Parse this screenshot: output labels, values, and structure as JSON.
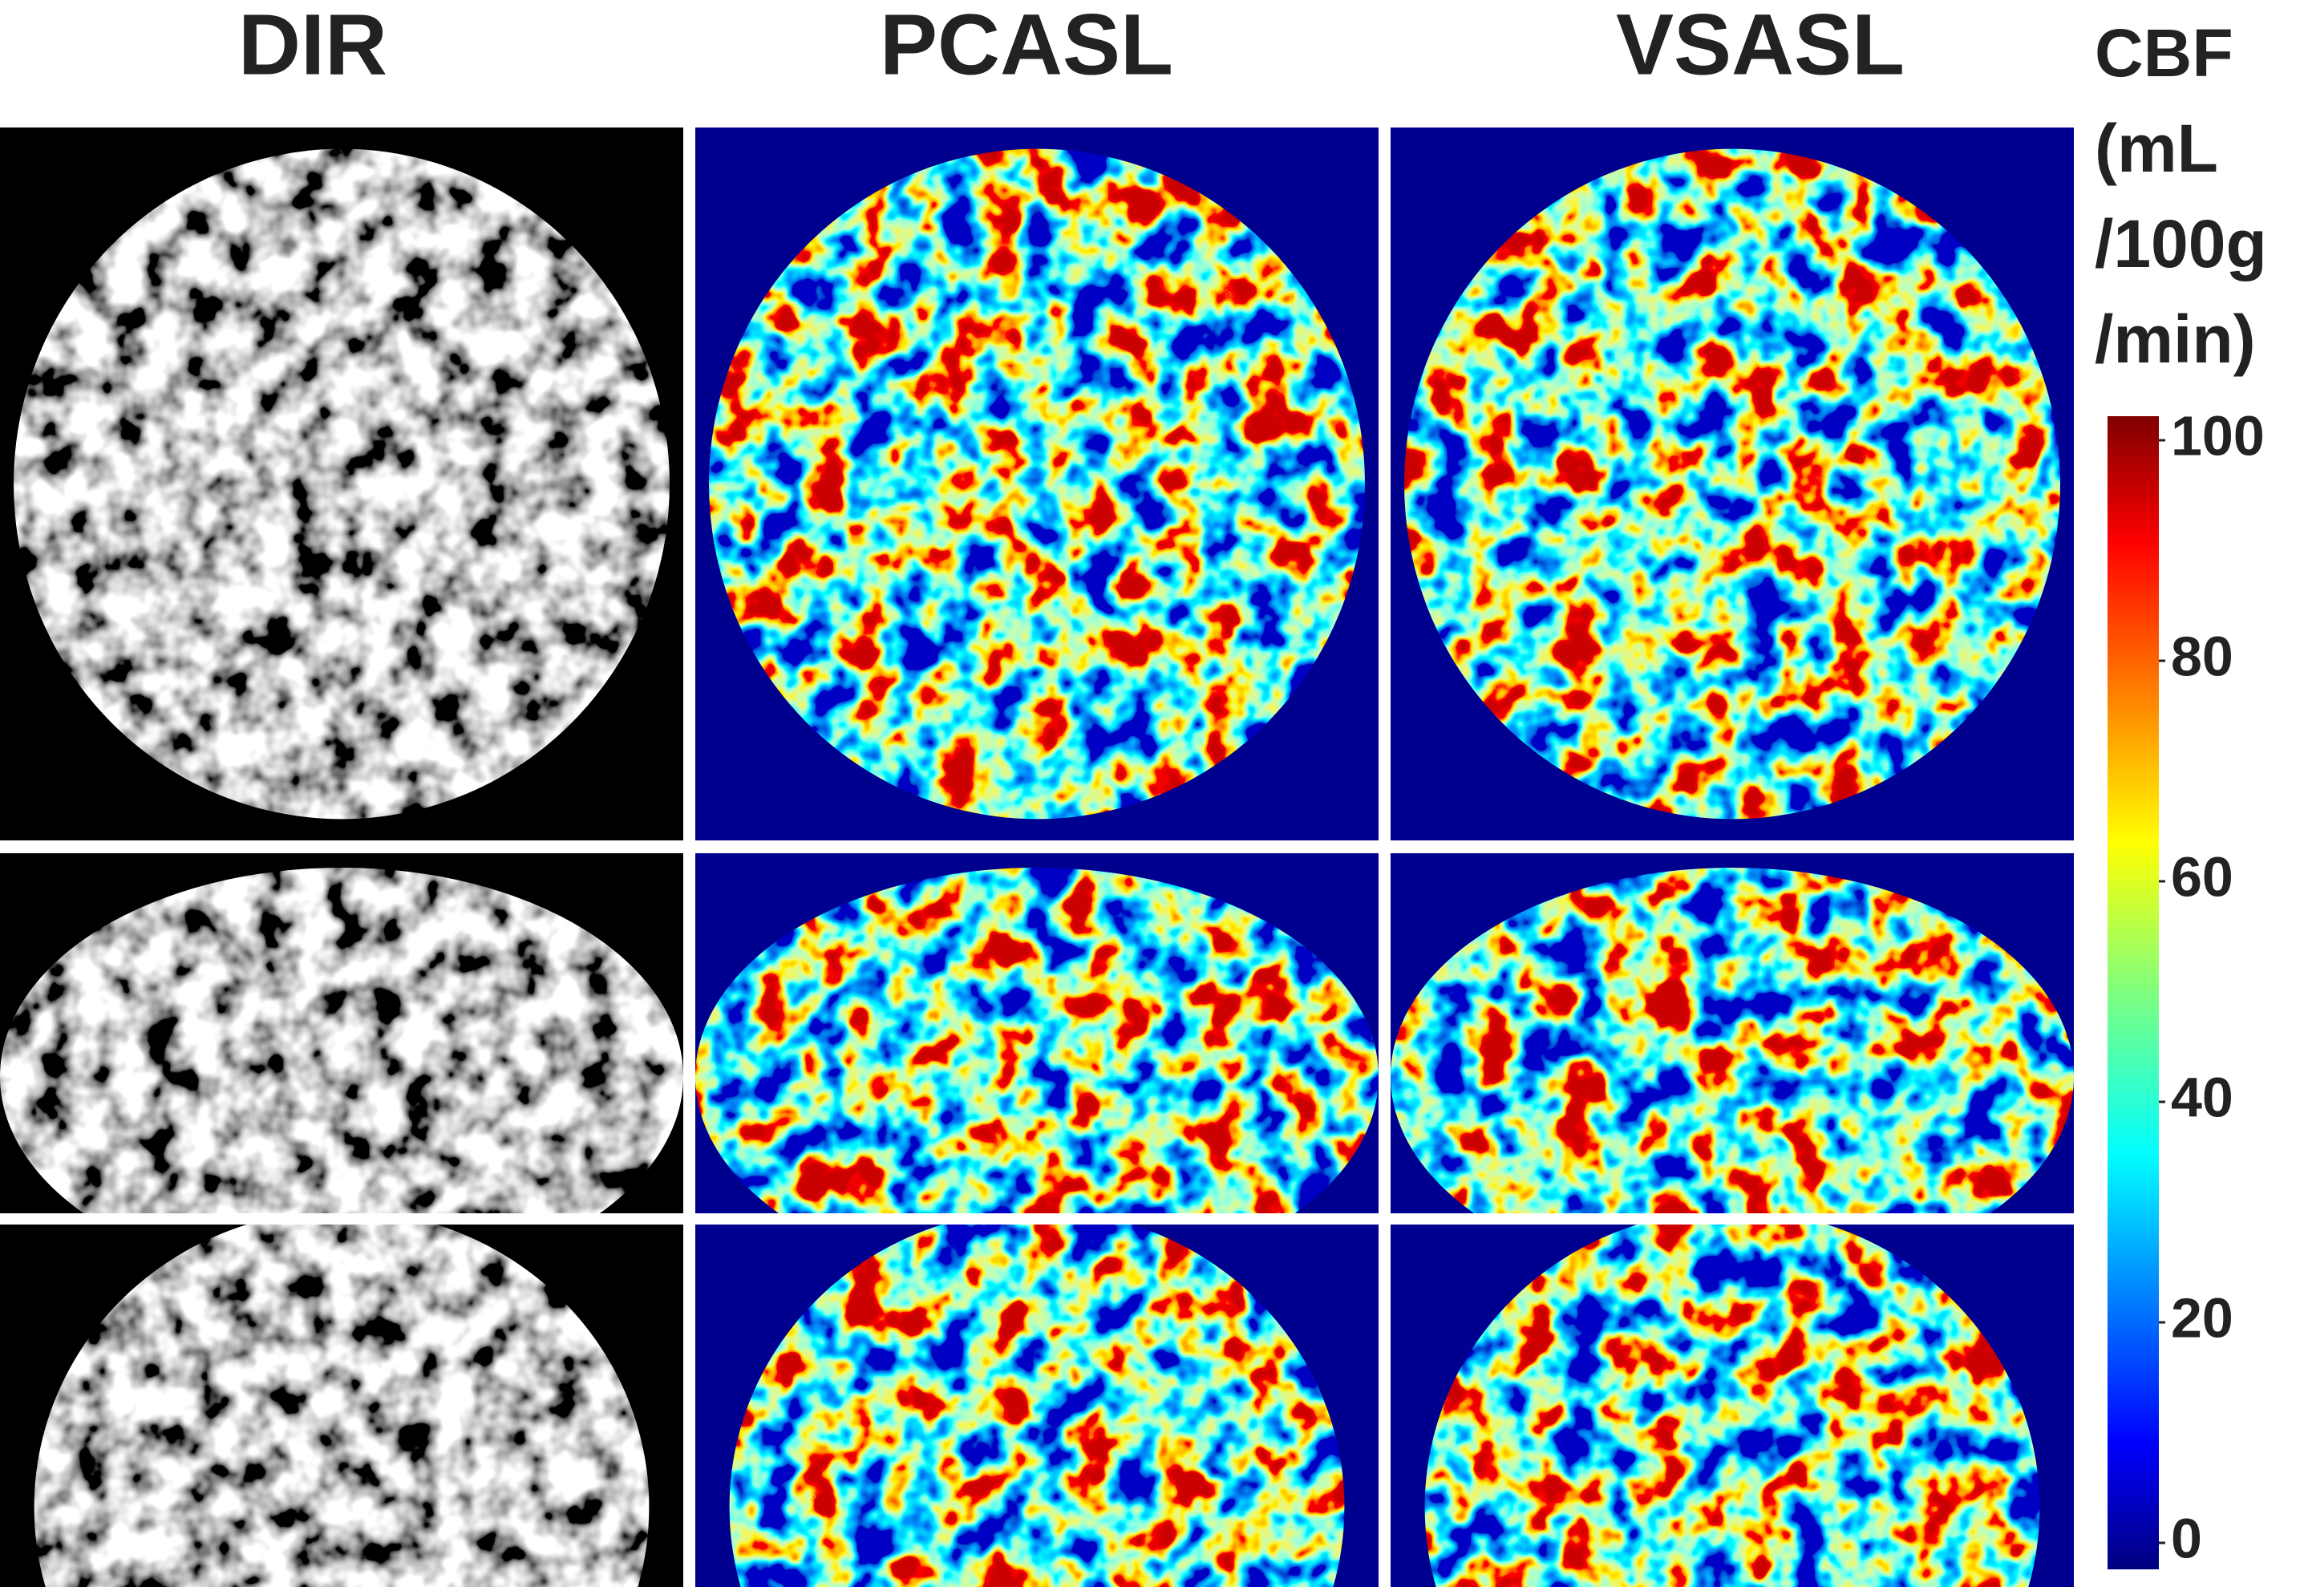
{
  "columns": [
    "DIR",
    "PCASL",
    "VSASL"
  ],
  "colorbar": {
    "label": [
      "CBF",
      "(mL",
      "/100g",
      "/min)"
    ],
    "ticks": [
      0,
      20,
      40,
      60,
      80,
      100
    ]
  }
}
